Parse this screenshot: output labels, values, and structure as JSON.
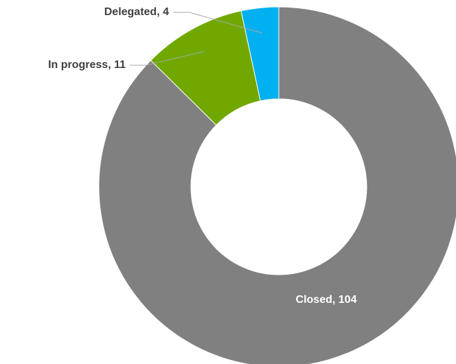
{
  "chart_data": {
    "type": "donut",
    "values": [
      104,
      11,
      4
    ],
    "value_labels": [
      "Closed, 104",
      "In progress, 11",
      "Delegated, 4"
    ],
    "colors": [
      "#808080",
      "#70a800",
      "#00b0f0"
    ]
  }
}
